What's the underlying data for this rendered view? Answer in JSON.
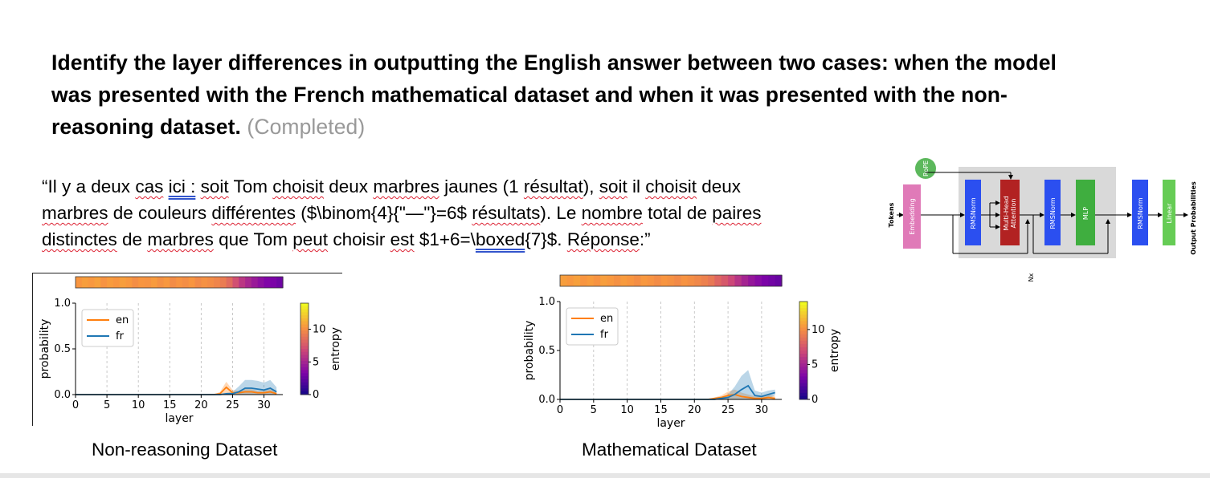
{
  "heading": {
    "text": "Identify the layer differences in outputting the English answer between two cases: when the model was presented with the French mathematical dataset and when it was presented with the non-reasoning dataset.",
    "status": "(Completed)"
  },
  "quote": {
    "p1": "“Il y a deux ",
    "w1": "cas",
    "p2": " ",
    "w2": "ici :",
    "p3": " ",
    "w3": "soit",
    "p4": " Tom ",
    "w4": "choisit",
    "p5": " deux ",
    "w5": "marbres",
    "p6": " jaunes (1 ",
    "w6": "résultat",
    "p7": "), ",
    "w7": "soit",
    "p8": " il ",
    "w8": "choisit",
    "p9": " deux ",
    "w9": "marbres",
    "p10": " de couleurs ",
    "w10": "différentes",
    "p11": " ($\\binom{4}{\"—\"}=6$ ",
    "w11": "résultats",
    "p12": "). Le ",
    "w12": "nombre",
    "p13": " total de ",
    "w13": "paires",
    "w14": "distinctes",
    "p14": " de ",
    "w15": "marbres",
    "p15": " que Tom ",
    "w16": "peut",
    "p16": " choisir ",
    "w17": "est",
    "p17": " $1+6=\\",
    "w18": "boxed",
    "p18": "{7}$. ",
    "w19": "Réponse",
    "p19": ":”"
  },
  "captions": {
    "left": "Non-reasoning Dataset",
    "right": "Mathematical Dataset"
  },
  "architecture": {
    "rope": "RoPE",
    "tokens": "Tokens",
    "embedding": "Embedding",
    "rmsnorm1": "RMSNorm",
    "attention_line1": "Multi-Head",
    "attention_line2": "Attention",
    "rmsnorm2": "RMSNorm",
    "mlp": "MLP",
    "rmsnorm3": "RMSNorm",
    "linear": "Linear",
    "output": "Output Probabilities",
    "repeat": "Nx",
    "colors": {
      "rope": "#5cb85c",
      "embedding": "#e07ab8",
      "rmsnorm": "#2b4ff0",
      "attention": "#b22222",
      "mlp": "#3fae3f",
      "linear": "#66cc55",
      "block_bg": "#d9d9d9"
    }
  },
  "chart_data": [
    {
      "type": "line",
      "title": "",
      "xlabel": "layer",
      "ylabel": "probability",
      "xlim": [
        0,
        33
      ],
      "ylim": [
        0,
        1.0
      ],
      "xticks": [
        "0",
        "5",
        "10",
        "15",
        "20",
        "25",
        "30"
      ],
      "yticks": [
        "0.0",
        "0.5",
        "1.0"
      ],
      "legend": "top-left",
      "colorbar_label": "entropy",
      "colorbar_ticks": [
        "0",
        "5",
        "10"
      ],
      "entropy_strip": [
        10.5,
        10.8,
        10.6,
        10.9,
        10.4,
        10.7,
        10.5,
        10.8,
        10.6,
        10.2,
        10.5,
        10.4,
        10.7,
        10.3,
        10.6,
        10.1,
        10.4,
        10.2,
        10.5,
        10.0,
        10.3,
        10.1,
        9.8,
        9.4,
        8.6,
        7.4,
        6.2,
        5.4,
        4.7,
        4.1,
        3.6,
        3.4,
        3.0
      ],
      "series": [
        {
          "name": "en",
          "color": "#ff7f0e",
          "values": [
            0,
            0,
            0,
            0,
            0,
            0,
            0,
            0,
            0,
            0,
            0,
            0,
            0,
            0,
            0,
            0,
            0,
            0,
            0,
            0,
            0,
            0,
            0,
            0.01,
            0.08,
            0.02,
            0.02,
            0.03,
            0.03,
            0.02,
            0.02,
            0.03,
            0.01
          ],
          "band": [
            0,
            0,
            0,
            0,
            0,
            0,
            0,
            0,
            0,
            0,
            0,
            0,
            0,
            0,
            0,
            0,
            0,
            0,
            0,
            0,
            0,
            0,
            0,
            0.02,
            0.06,
            0.03,
            0.02,
            0.03,
            0.03,
            0.02,
            0.02,
            0.03,
            0.02
          ]
        },
        {
          "name": "fr",
          "color": "#1f77b4",
          "values": [
            0,
            0,
            0,
            0,
            0,
            0,
            0,
            0,
            0,
            0,
            0,
            0,
            0,
            0,
            0,
            0,
            0,
            0,
            0,
            0,
            0,
            0,
            0,
            0,
            0.01,
            0.01,
            0.03,
            0.07,
            0.07,
            0.06,
            0.05,
            0.07,
            0.03
          ],
          "band": [
            0,
            0,
            0,
            0,
            0,
            0,
            0,
            0,
            0,
            0,
            0,
            0,
            0,
            0,
            0,
            0,
            0,
            0,
            0,
            0,
            0,
            0,
            0,
            0,
            0.01,
            0.02,
            0.06,
            0.09,
            0.09,
            0.09,
            0.08,
            0.09,
            0.05
          ]
        }
      ]
    },
    {
      "type": "line",
      "title": "",
      "xlabel": "layer",
      "ylabel": "probability",
      "xlim": [
        0,
        33
      ],
      "ylim": [
        0,
        1.0
      ],
      "xticks": [
        "0",
        "5",
        "10",
        "15",
        "20",
        "25",
        "30"
      ],
      "yticks": [
        "0.0",
        "0.5",
        "1.0"
      ],
      "legend": "top-left",
      "colorbar_label": "entropy",
      "colorbar_ticks": [
        "0",
        "5",
        "10"
      ],
      "entropy_strip": [
        10.8,
        10.6,
        10.9,
        10.5,
        10.7,
        10.4,
        10.8,
        10.6,
        10.3,
        10.7,
        10.5,
        10.2,
        10.6,
        10.4,
        10.1,
        10.5,
        10.3,
        10.0,
        10.4,
        10.2,
        9.9,
        9.6,
        9.2,
        8.4,
        7.8,
        7.0,
        6.0,
        5.2,
        4.5,
        3.9,
        3.4,
        3.1,
        2.8
      ],
      "series": [
        {
          "name": "en",
          "color": "#ff7f0e",
          "values": [
            0,
            0,
            0,
            0,
            0,
            0,
            0,
            0,
            0,
            0,
            0,
            0,
            0,
            0,
            0,
            0,
            0,
            0,
            0,
            0,
            0,
            0,
            0,
            0.01,
            0.02,
            0.04,
            0.05,
            0.03,
            0.02,
            0.01,
            0.01,
            0.02,
            0.01
          ],
          "band": [
            0,
            0,
            0,
            0,
            0,
            0,
            0,
            0,
            0,
            0,
            0,
            0,
            0,
            0,
            0,
            0,
            0,
            0,
            0,
            0,
            0,
            0,
            0,
            0.01,
            0.02,
            0.04,
            0.05,
            0.04,
            0.03,
            0.02,
            0.02,
            0.03,
            0.02
          ]
        },
        {
          "name": "fr",
          "color": "#1f77b4",
          "values": [
            0,
            0,
            0,
            0,
            0,
            0,
            0,
            0,
            0,
            0,
            0,
            0,
            0,
            0,
            0,
            0,
            0,
            0,
            0,
            0,
            0,
            0,
            0,
            0,
            0.01,
            0.02,
            0.05,
            0.1,
            0.14,
            0.04,
            0.03,
            0.05,
            0.07
          ],
          "band": [
            0,
            0,
            0,
            0,
            0,
            0,
            0,
            0,
            0,
            0,
            0,
            0,
            0,
            0,
            0,
            0,
            0,
            0,
            0,
            0,
            0,
            0,
            0,
            0,
            0.01,
            0.03,
            0.08,
            0.14,
            0.16,
            0.05,
            0.04,
            0.04,
            0.03
          ]
        }
      ]
    }
  ]
}
